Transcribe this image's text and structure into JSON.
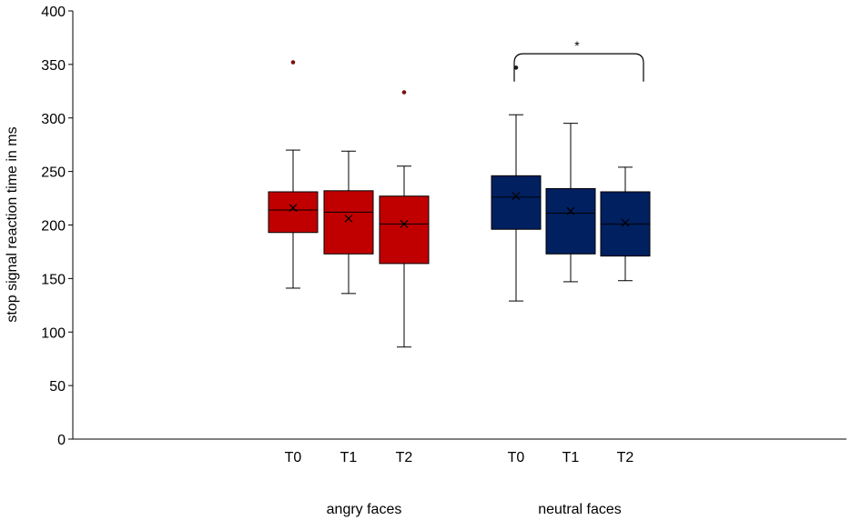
{
  "chart_data": {
    "type": "box",
    "title": "",
    "xlabel": "",
    "ylabel": "stop signal reaction time in ms",
    "ylim": [
      0,
      400
    ],
    "yticks": [
      0,
      50,
      100,
      150,
      200,
      250,
      300,
      350,
      400
    ],
    "grid": false,
    "legend": "none",
    "groups": [
      {
        "label": "angry faces",
        "color": "#c00000",
        "boxes": [
          {
            "label": "T0",
            "min": 141,
            "q1": 193,
            "median": 214,
            "mean": 216,
            "q3": 231,
            "max": 270,
            "outliers": [
              352
            ]
          },
          {
            "label": "T1",
            "min": 136,
            "q1": 173,
            "median": 212,
            "mean": 206,
            "q3": 232,
            "max": 269,
            "outliers": []
          },
          {
            "label": "T2",
            "min": 86,
            "q1": 164,
            "median": 201,
            "mean": 201,
            "q3": 227,
            "max": 255,
            "outliers": [
              324
            ]
          }
        ]
      },
      {
        "label": "neutral faces",
        "color": "#002060",
        "boxes": [
          {
            "label": "T0",
            "min": 129,
            "q1": 196,
            "median": 226,
            "mean": 227,
            "q3": 246,
            "max": 303,
            "outliers": [
              347
            ]
          },
          {
            "label": "T1",
            "min": 147,
            "q1": 173,
            "median": 211,
            "mean": 213,
            "q3": 234,
            "max": 295,
            "outliers": []
          },
          {
            "label": "T2",
            "min": 148,
            "q1": 171,
            "median": 201,
            "mean": 202,
            "q3": 231,
            "max": 254,
            "outliers": []
          }
        ]
      }
    ],
    "annotations": [
      {
        "text": "*",
        "group": 1,
        "from": 0,
        "to": 2,
        "y": 360
      }
    ]
  }
}
